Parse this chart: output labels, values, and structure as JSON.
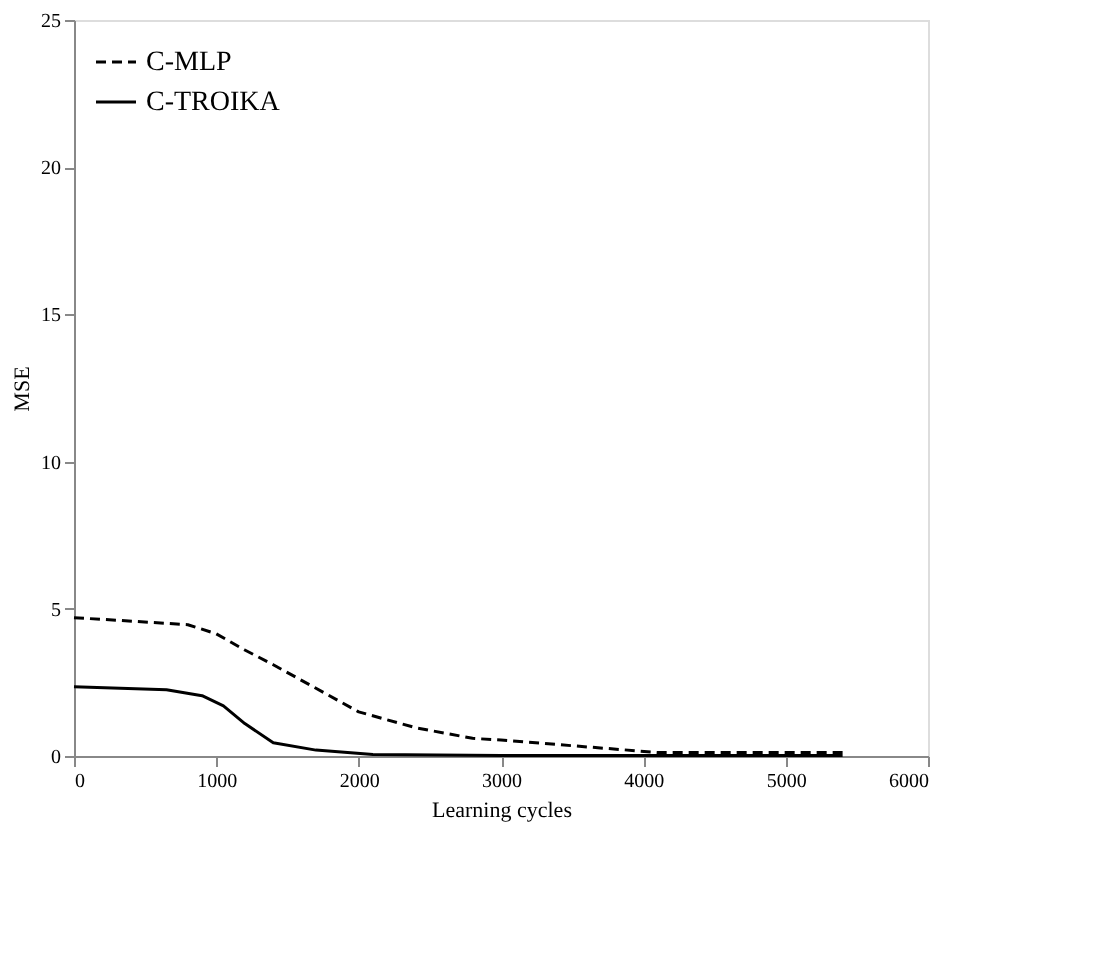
{
  "chart_data": {
    "type": "line",
    "xlabel": "Learning cycles",
    "ylabel": "MSE",
    "xlim": [
      0,
      6000
    ],
    "ylim": [
      0,
      25
    ],
    "xticks": [
      0,
      1000,
      2000,
      3000,
      4000,
      5000,
      6000
    ],
    "yticks": [
      0,
      5,
      10,
      15,
      20,
      25
    ],
    "grid": false,
    "legend": "top left",
    "marker": "none",
    "series": [
      {
        "name": "C-MLP",
        "color": "#000000",
        "line_style": "dashed",
        "x": [
          0,
          800,
          1000,
          1200,
          1400,
          2000,
          2400,
          2800,
          3000,
          4100,
          5400
        ],
        "values": [
          4.7,
          4.46,
          4.15,
          3.6,
          3.1,
          1.5,
          0.96,
          0.6,
          0.54,
          0.12,
          0.12
        ]
      },
      {
        "name": "C-TROIKA",
        "color": "#000000",
        "line_style": "solid",
        "x": [
          0,
          650,
          900,
          1050,
          1200,
          1400,
          1700,
          2100,
          3000,
          5400
        ],
        "values": [
          2.35,
          2.25,
          2.05,
          1.7,
          1.1,
          0.45,
          0.2,
          0.05,
          0.02,
          0.02
        ]
      }
    ]
  }
}
